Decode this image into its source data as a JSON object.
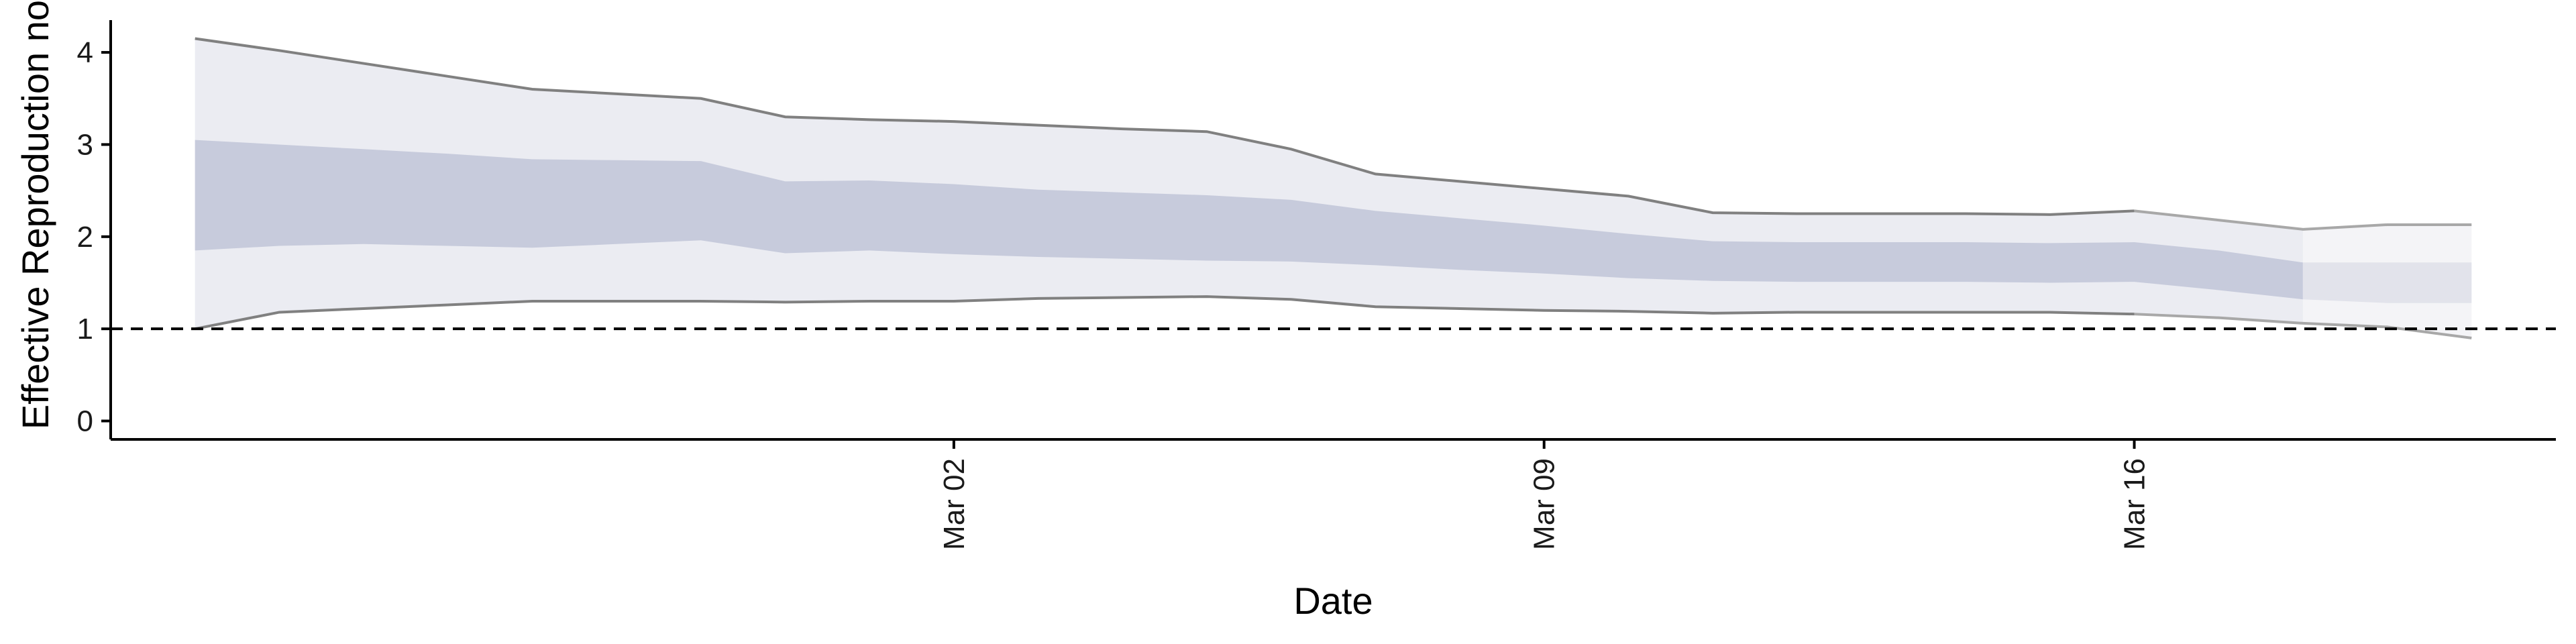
{
  "chart_data": {
    "type": "area",
    "xlabel": "Date",
    "ylabel": "Effective Reproduction no",
    "x_type": "date",
    "x_ticks": [
      {
        "date": "2020-03-02",
        "label": "Mar 02"
      },
      {
        "date": "2020-03-09",
        "label": "Mar 09"
      },
      {
        "date": "2020-03-16",
        "label": "Mar 16"
      }
    ],
    "xlim": [
      "2020-02-21",
      "2020-03-21"
    ],
    "y_ticks": [
      0,
      1,
      2,
      3,
      4
    ],
    "ylim": [
      -0.2,
      4.35
    ],
    "grid": false,
    "legend": "none",
    "reference_line": {
      "y": 1,
      "style": "dashed",
      "color": "#000000"
    },
    "estimate_type_change_date": "2020-03-18",
    "colors": {
      "outer_band": "#ebecf2",
      "inner_band": "#c7cbdc",
      "outer_band_projected": "#f4f4f7",
      "inner_band_projected": "#e2e3eb",
      "bound_line": "#808080",
      "bound_line_projected": "#a8a8a8"
    },
    "x": [
      "2020-02-22",
      "2020-02-23",
      "2020-02-24",
      "2020-02-25",
      "2020-02-26",
      "2020-02-27",
      "2020-02-28",
      "2020-02-29",
      "2020-03-01",
      "2020-03-02",
      "2020-03-03",
      "2020-03-04",
      "2020-03-05",
      "2020-03-06",
      "2020-03-07",
      "2020-03-08",
      "2020-03-09",
      "2020-03-10",
      "2020-03-11",
      "2020-03-12",
      "2020-03-13",
      "2020-03-14",
      "2020-03-15",
      "2020-03-16",
      "2020-03-17",
      "2020-03-18",
      "2020-03-19",
      "2020-03-20"
    ],
    "series": [
      {
        "name": "",
        "role": "outer_upper",
        "values": [
          4.15,
          4.02,
          3.88,
          3.74,
          3.6,
          3.55,
          3.5,
          3.3,
          3.27,
          3.25,
          3.21,
          3.17,
          3.14,
          2.95,
          2.68,
          2.6,
          2.52,
          2.44,
          2.26,
          2.25,
          2.25,
          2.25,
          2.24,
          2.28,
          2.18,
          2.08,
          2.13,
          2.13
        ]
      },
      {
        "name": "",
        "role": "inner_upper",
        "values": [
          3.05,
          3.0,
          2.95,
          2.9,
          2.84,
          2.83,
          2.82,
          2.6,
          2.61,
          2.57,
          2.51,
          2.48,
          2.45,
          2.4,
          2.28,
          2.2,
          2.12,
          2.03,
          1.95,
          1.94,
          1.94,
          1.94,
          1.93,
          1.94,
          1.85,
          1.72,
          1.72,
          1.72
        ]
      },
      {
        "name": "",
        "role": "inner_lower",
        "values": [
          1.85,
          1.9,
          1.92,
          1.9,
          1.88,
          1.92,
          1.96,
          1.82,
          1.85,
          1.81,
          1.78,
          1.76,
          1.74,
          1.73,
          1.69,
          1.64,
          1.6,
          1.55,
          1.52,
          1.51,
          1.51,
          1.51,
          1.5,
          1.51,
          1.42,
          1.32,
          1.28,
          1.28
        ]
      },
      {
        "name": "",
        "role": "outer_lower",
        "values": [
          1.0,
          1.18,
          1.22,
          1.26,
          1.3,
          1.3,
          1.3,
          1.29,
          1.3,
          1.3,
          1.33,
          1.34,
          1.35,
          1.32,
          1.24,
          1.22,
          1.2,
          1.19,
          1.17,
          1.18,
          1.18,
          1.18,
          1.18,
          1.16,
          1.12,
          1.06,
          1.02,
          0.9
        ]
      }
    ]
  }
}
